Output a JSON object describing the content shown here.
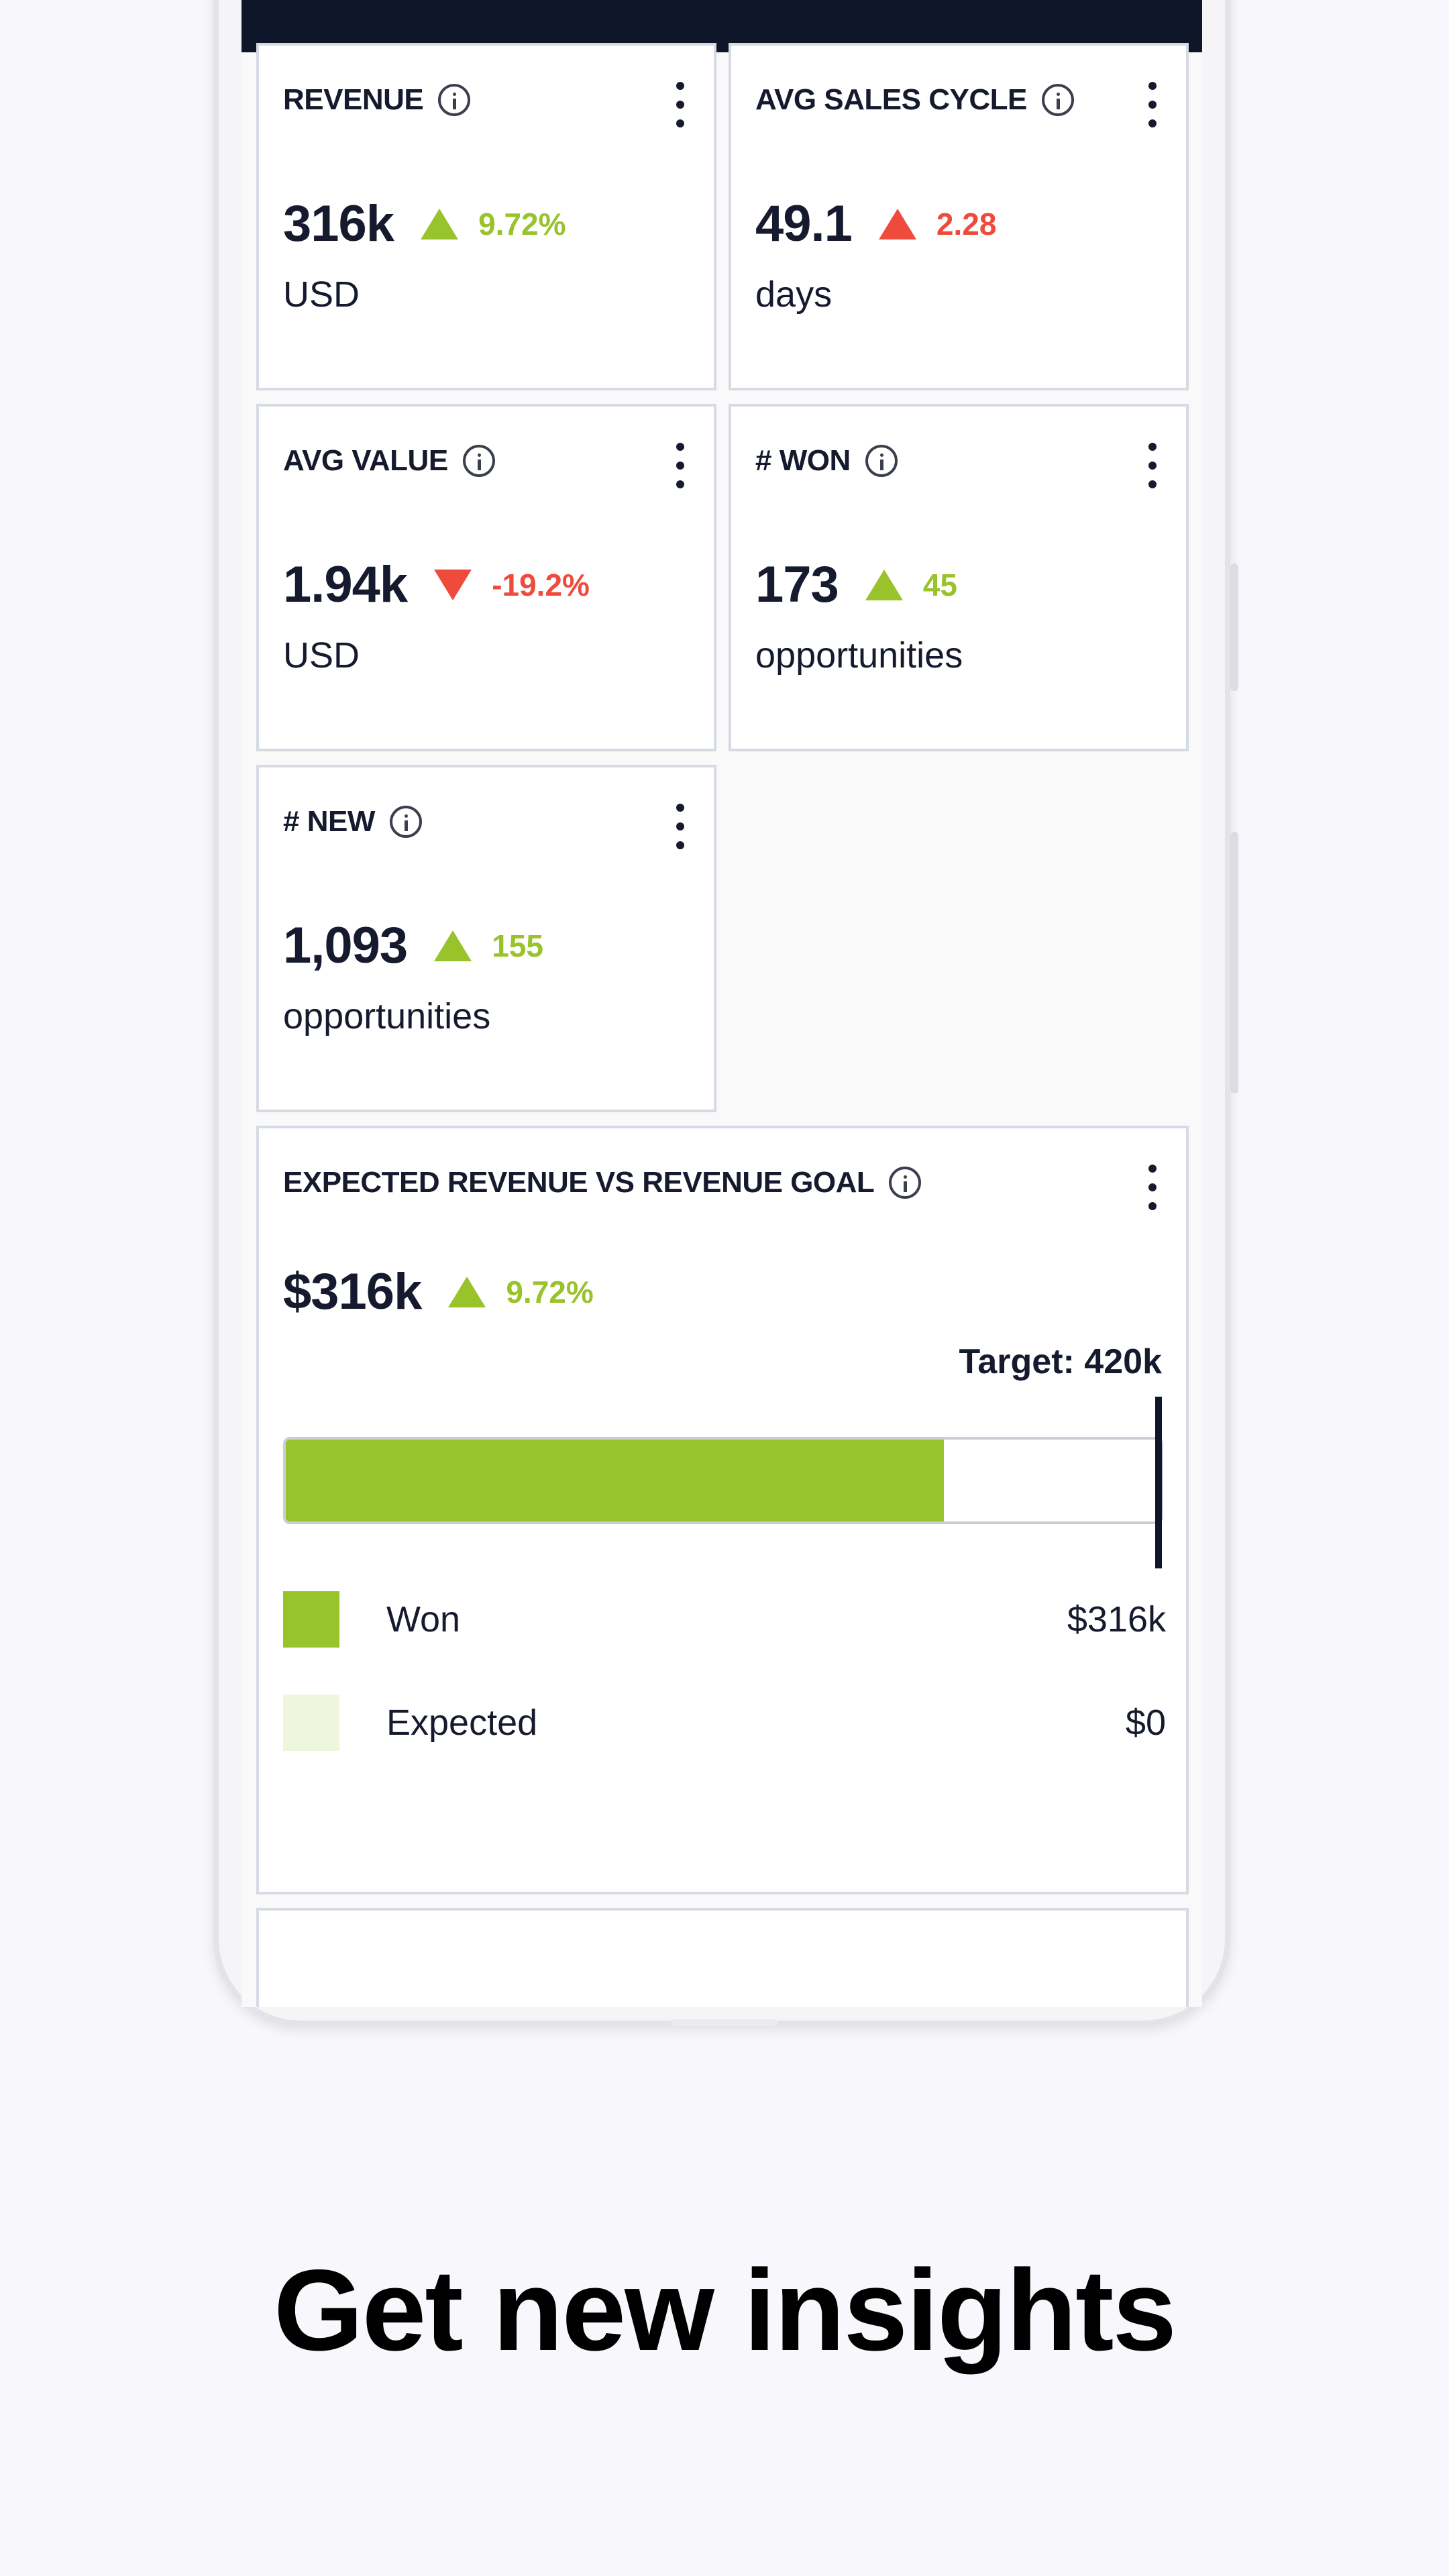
{
  "cards": [
    {
      "title": "REVENUE",
      "value": "316k",
      "delta": "9.72%",
      "unit": "USD"
    },
    {
      "title": "AVG SALES CYCLE",
      "value": "49.1",
      "delta": "2.28",
      "unit": "days"
    },
    {
      "title": "AVG VALUE",
      "value": "1.94k",
      "delta": "-19.2%",
      "unit": "USD"
    },
    {
      "title": "# WON",
      "value": "173",
      "delta": "45",
      "unit": "opportunities"
    },
    {
      "title": "# NEW",
      "value": "1,093",
      "delta": "155",
      "unit": "opportunities"
    }
  ],
  "goal_card": {
    "title": "EXPECTED REVENUE VS REVENUE GOAL",
    "value": "$316k",
    "delta": "9.72%",
    "target_label": "Target: 420k",
    "progress_fraction": 0.752,
    "legend": [
      {
        "label": "Won",
        "value": "$316k",
        "color": "#98c32a"
      },
      {
        "label": "Expected",
        "value": "$0",
        "color": "#eef6dc"
      }
    ]
  },
  "colors": {
    "positive": "#98c32a",
    "negative": "#ee4b3c",
    "topbar": "#10162a"
  },
  "icons": [
    "info-icon",
    "kebab-menu-icon",
    "triangle-up-icon",
    "triangle-down-icon"
  ],
  "headline": "Get new insights"
}
